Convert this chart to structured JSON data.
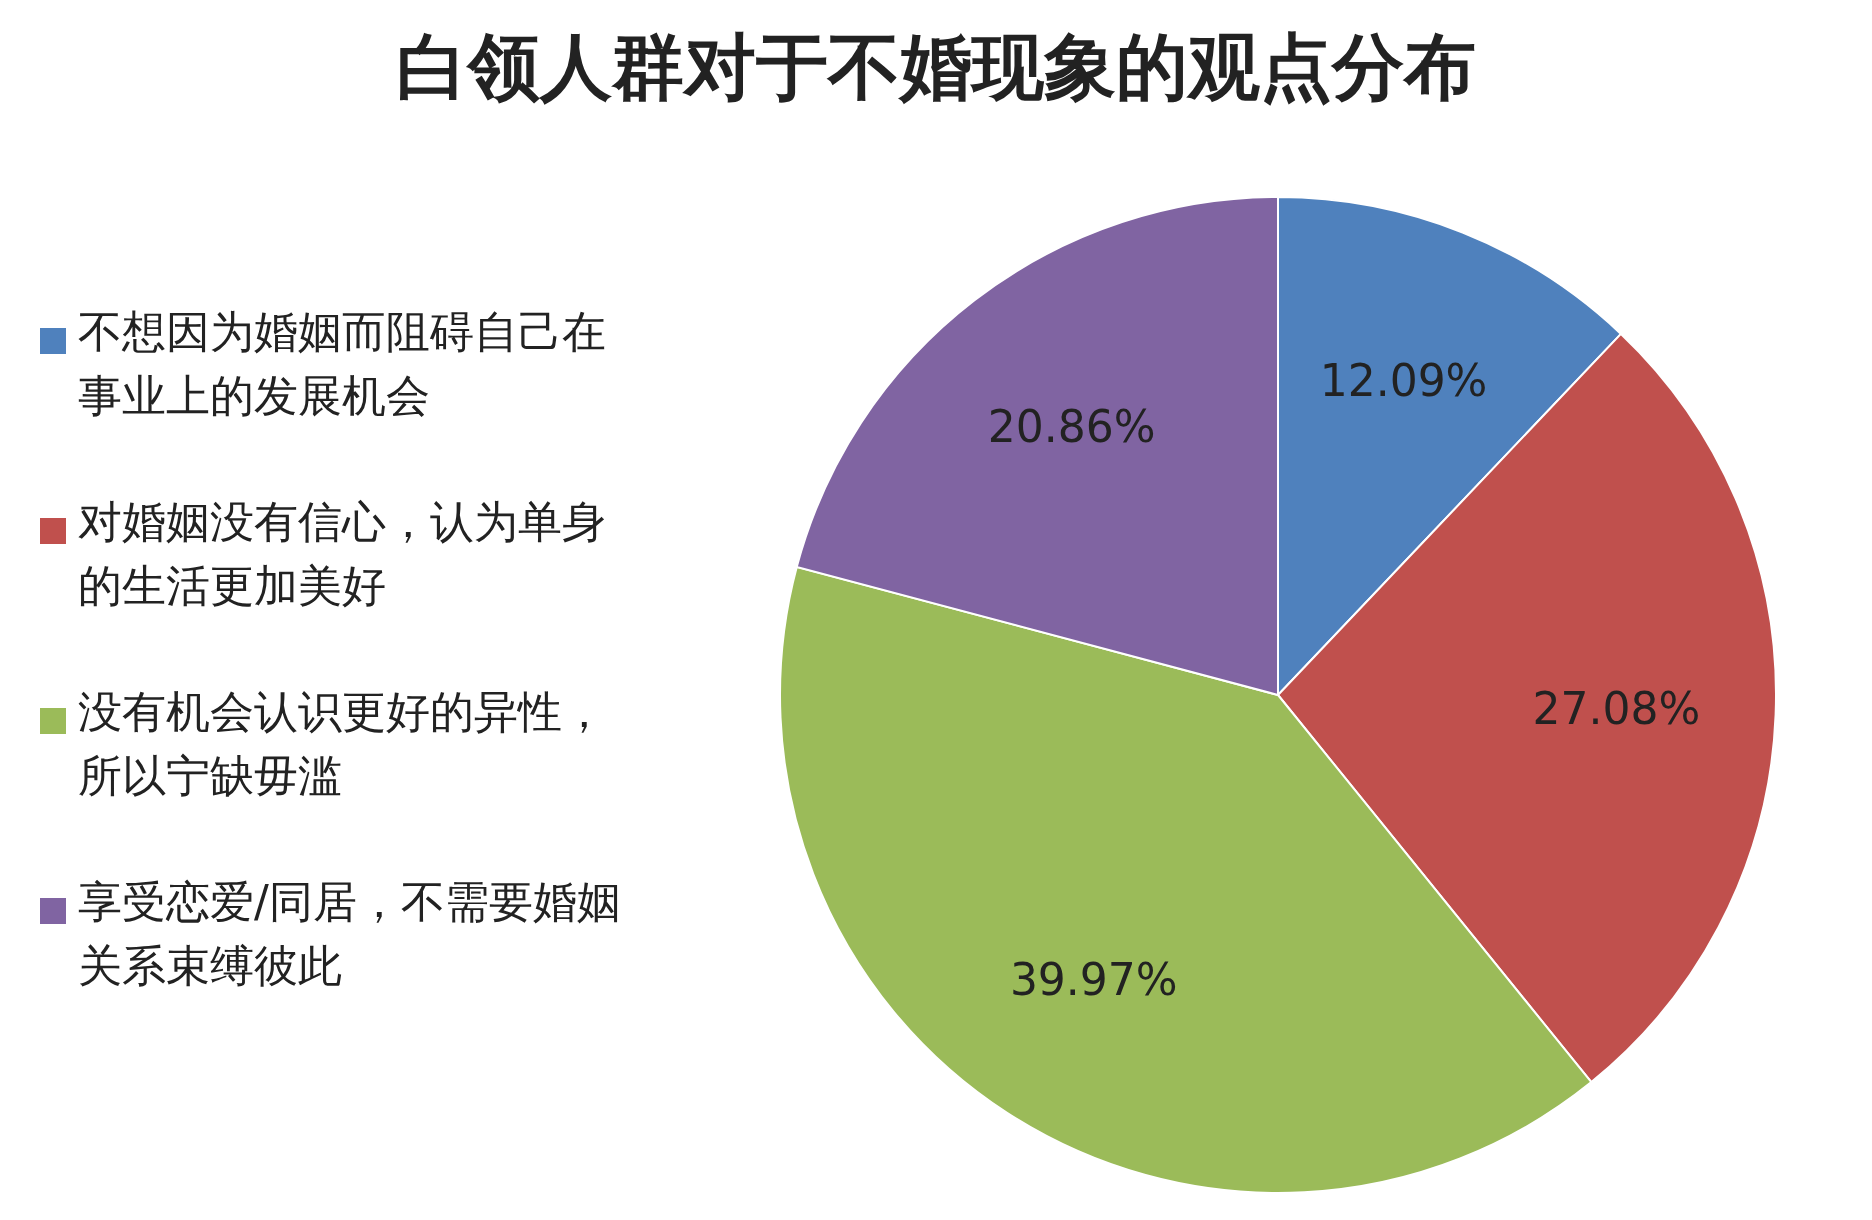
{
  "chart_data": {
    "type": "pie",
    "title": "白领人群对于不婚现象的观点分布",
    "categories": [
      "不想因为婚姻而阻碍自己在事业上的发展机会",
      "对婚姻没有信心，认为单身的生活更加美好",
      "没有机会认识更好的异性，所以宁缺毋滥",
      "享受恋爱/同居，不需要婚姻关系束缚彼此"
    ],
    "values": [
      12.09,
      27.08,
      39.97,
      20.86
    ],
    "colors": [
      "#4f81bd",
      "#c0504d",
      "#9bbb59",
      "#8064a2"
    ],
    "value_labels": [
      "12.09%",
      "27.08%",
      "39.97%",
      "20.86%"
    ],
    "legend": "left"
  }
}
